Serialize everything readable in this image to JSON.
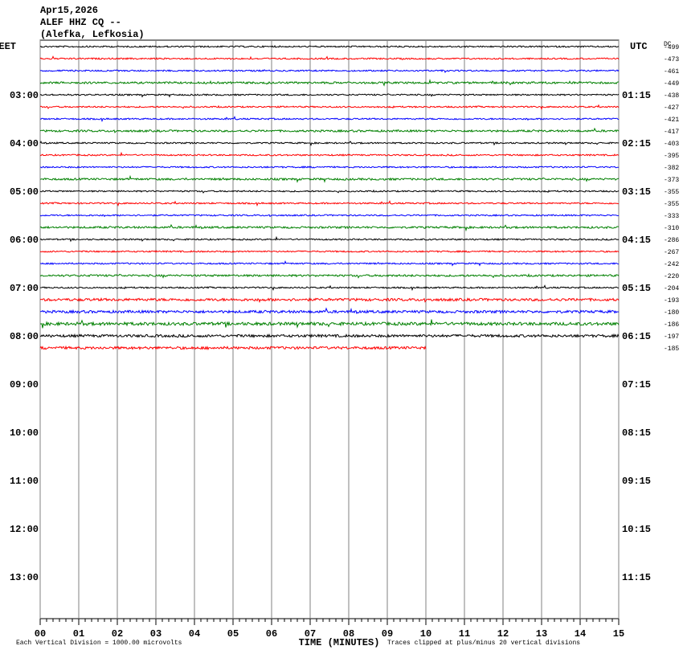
{
  "header": {
    "date": "Apr15,2026",
    "station": "ALEF HHZ CQ --",
    "location": "(Alefka, Lefkosia)"
  },
  "chart_data": {
    "type": "helicorder",
    "left_axis_label": "EET",
    "right_axis_label": "UTC",
    "dc_header": "DC",
    "xlabel": "TIME (MINUTES)",
    "xlim": [
      0,
      15
    ],
    "xticks": [
      {
        "value": 0,
        "label": "00"
      },
      {
        "value": 1,
        "label": "01"
      },
      {
        "value": 2,
        "label": "02"
      },
      {
        "value": 3,
        "label": "03"
      },
      {
        "value": 4,
        "label": "04"
      },
      {
        "value": 5,
        "label": "05"
      },
      {
        "value": 6,
        "label": "06"
      },
      {
        "value": 7,
        "label": "07"
      },
      {
        "value": 8,
        "label": "08"
      },
      {
        "value": 9,
        "label": "09"
      },
      {
        "value": 10,
        "label": "10"
      },
      {
        "value": 11,
        "label": "11"
      },
      {
        "value": 12,
        "label": "12"
      },
      {
        "value": 13,
        "label": "13"
      },
      {
        "value": 14,
        "label": "14"
      },
      {
        "value": 15,
        "label": "15"
      }
    ],
    "left_times": [
      "03:00",
      "04:00",
      "05:00",
      "06:00",
      "07:00",
      "08:00",
      "09:00",
      "10:00",
      "11:00",
      "12:00",
      "13:00"
    ],
    "right_times": [
      "01:15",
      "02:15",
      "03:15",
      "04:15",
      "05:15",
      "06:15",
      "07:15",
      "08:15",
      "09:15",
      "10:15",
      "11:15"
    ],
    "traces": [
      {
        "color": "#000000",
        "dc": -499
      },
      {
        "color": "#ff0000",
        "dc": -473
      },
      {
        "color": "#0000ff",
        "dc": -461
      },
      {
        "color": "#008000",
        "dc": -449
      },
      {
        "color": "#000000",
        "dc": -438
      },
      {
        "color": "#ff0000",
        "dc": -427
      },
      {
        "color": "#0000ff",
        "dc": -421
      },
      {
        "color": "#008000",
        "dc": -417
      },
      {
        "color": "#000000",
        "dc": -403
      },
      {
        "color": "#ff0000",
        "dc": -395
      },
      {
        "color": "#0000ff",
        "dc": -382
      },
      {
        "color": "#008000",
        "dc": -373
      },
      {
        "color": "#000000",
        "dc": -355
      },
      {
        "color": "#ff0000",
        "dc": -355
      },
      {
        "color": "#0000ff",
        "dc": -333
      },
      {
        "color": "#008000",
        "dc": -310
      },
      {
        "color": "#000000",
        "dc": -286
      },
      {
        "color": "#ff0000",
        "dc": -267
      },
      {
        "color": "#0000ff",
        "dc": -242
      },
      {
        "color": "#008000",
        "dc": -220
      },
      {
        "color": "#000000",
        "dc": -204
      },
      {
        "color": "#ff0000",
        "dc": -193
      },
      {
        "color": "#0000ff",
        "dc": -180
      },
      {
        "color": "#008000",
        "dc": -186
      },
      {
        "color": "#000000",
        "dc": -197
      },
      {
        "color": "#ff0000",
        "dc": -185,
        "end": 10
      }
    ],
    "footnote_left": "Each Vertical Division = 1000.00 microvolts",
    "footnote_right": "Traces clipped at plus/minus 20 vertical divisions"
  }
}
